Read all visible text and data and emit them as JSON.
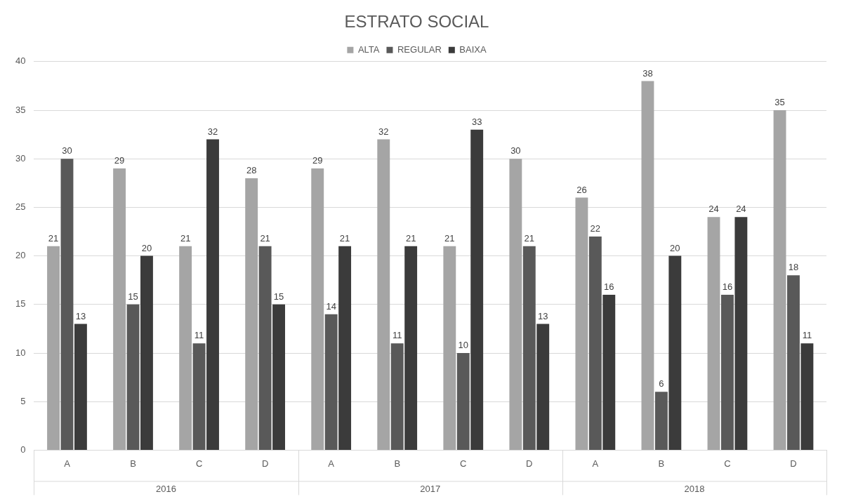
{
  "chart_data": {
    "type": "bar",
    "title": "ESTRATO SOCIAL",
    "categories": [
      "A",
      "B",
      "C",
      "D",
      "A",
      "B",
      "C",
      "D",
      "A",
      "B",
      "C",
      "D"
    ],
    "annotations": [
      "2016",
      "2017",
      "2018"
    ],
    "series": [
      {
        "name": "ALTA",
        "color": "#a5a5a5",
        "values": [
          21,
          29,
          21,
          28,
          29,
          32,
          21,
          30,
          26,
          38,
          24,
          35
        ]
      },
      {
        "name": "REGULAR",
        "color": "#595959",
        "values": [
          30,
          15,
          11,
          21,
          14,
          11,
          10,
          21,
          22,
          6,
          16,
          18
        ]
      },
      {
        "name": "BAIXA",
        "color": "#3b3b3b",
        "values": [
          13,
          20,
          32,
          15,
          21,
          21,
          33,
          13,
          16,
          20,
          24,
          11
        ]
      }
    ],
    "ylim": [
      0,
      40
    ],
    "yticks": [
      0,
      5,
      10,
      15,
      20,
      25,
      30,
      35,
      40
    ],
    "grid": "y",
    "legend": "top",
    "data_labels": true
  }
}
